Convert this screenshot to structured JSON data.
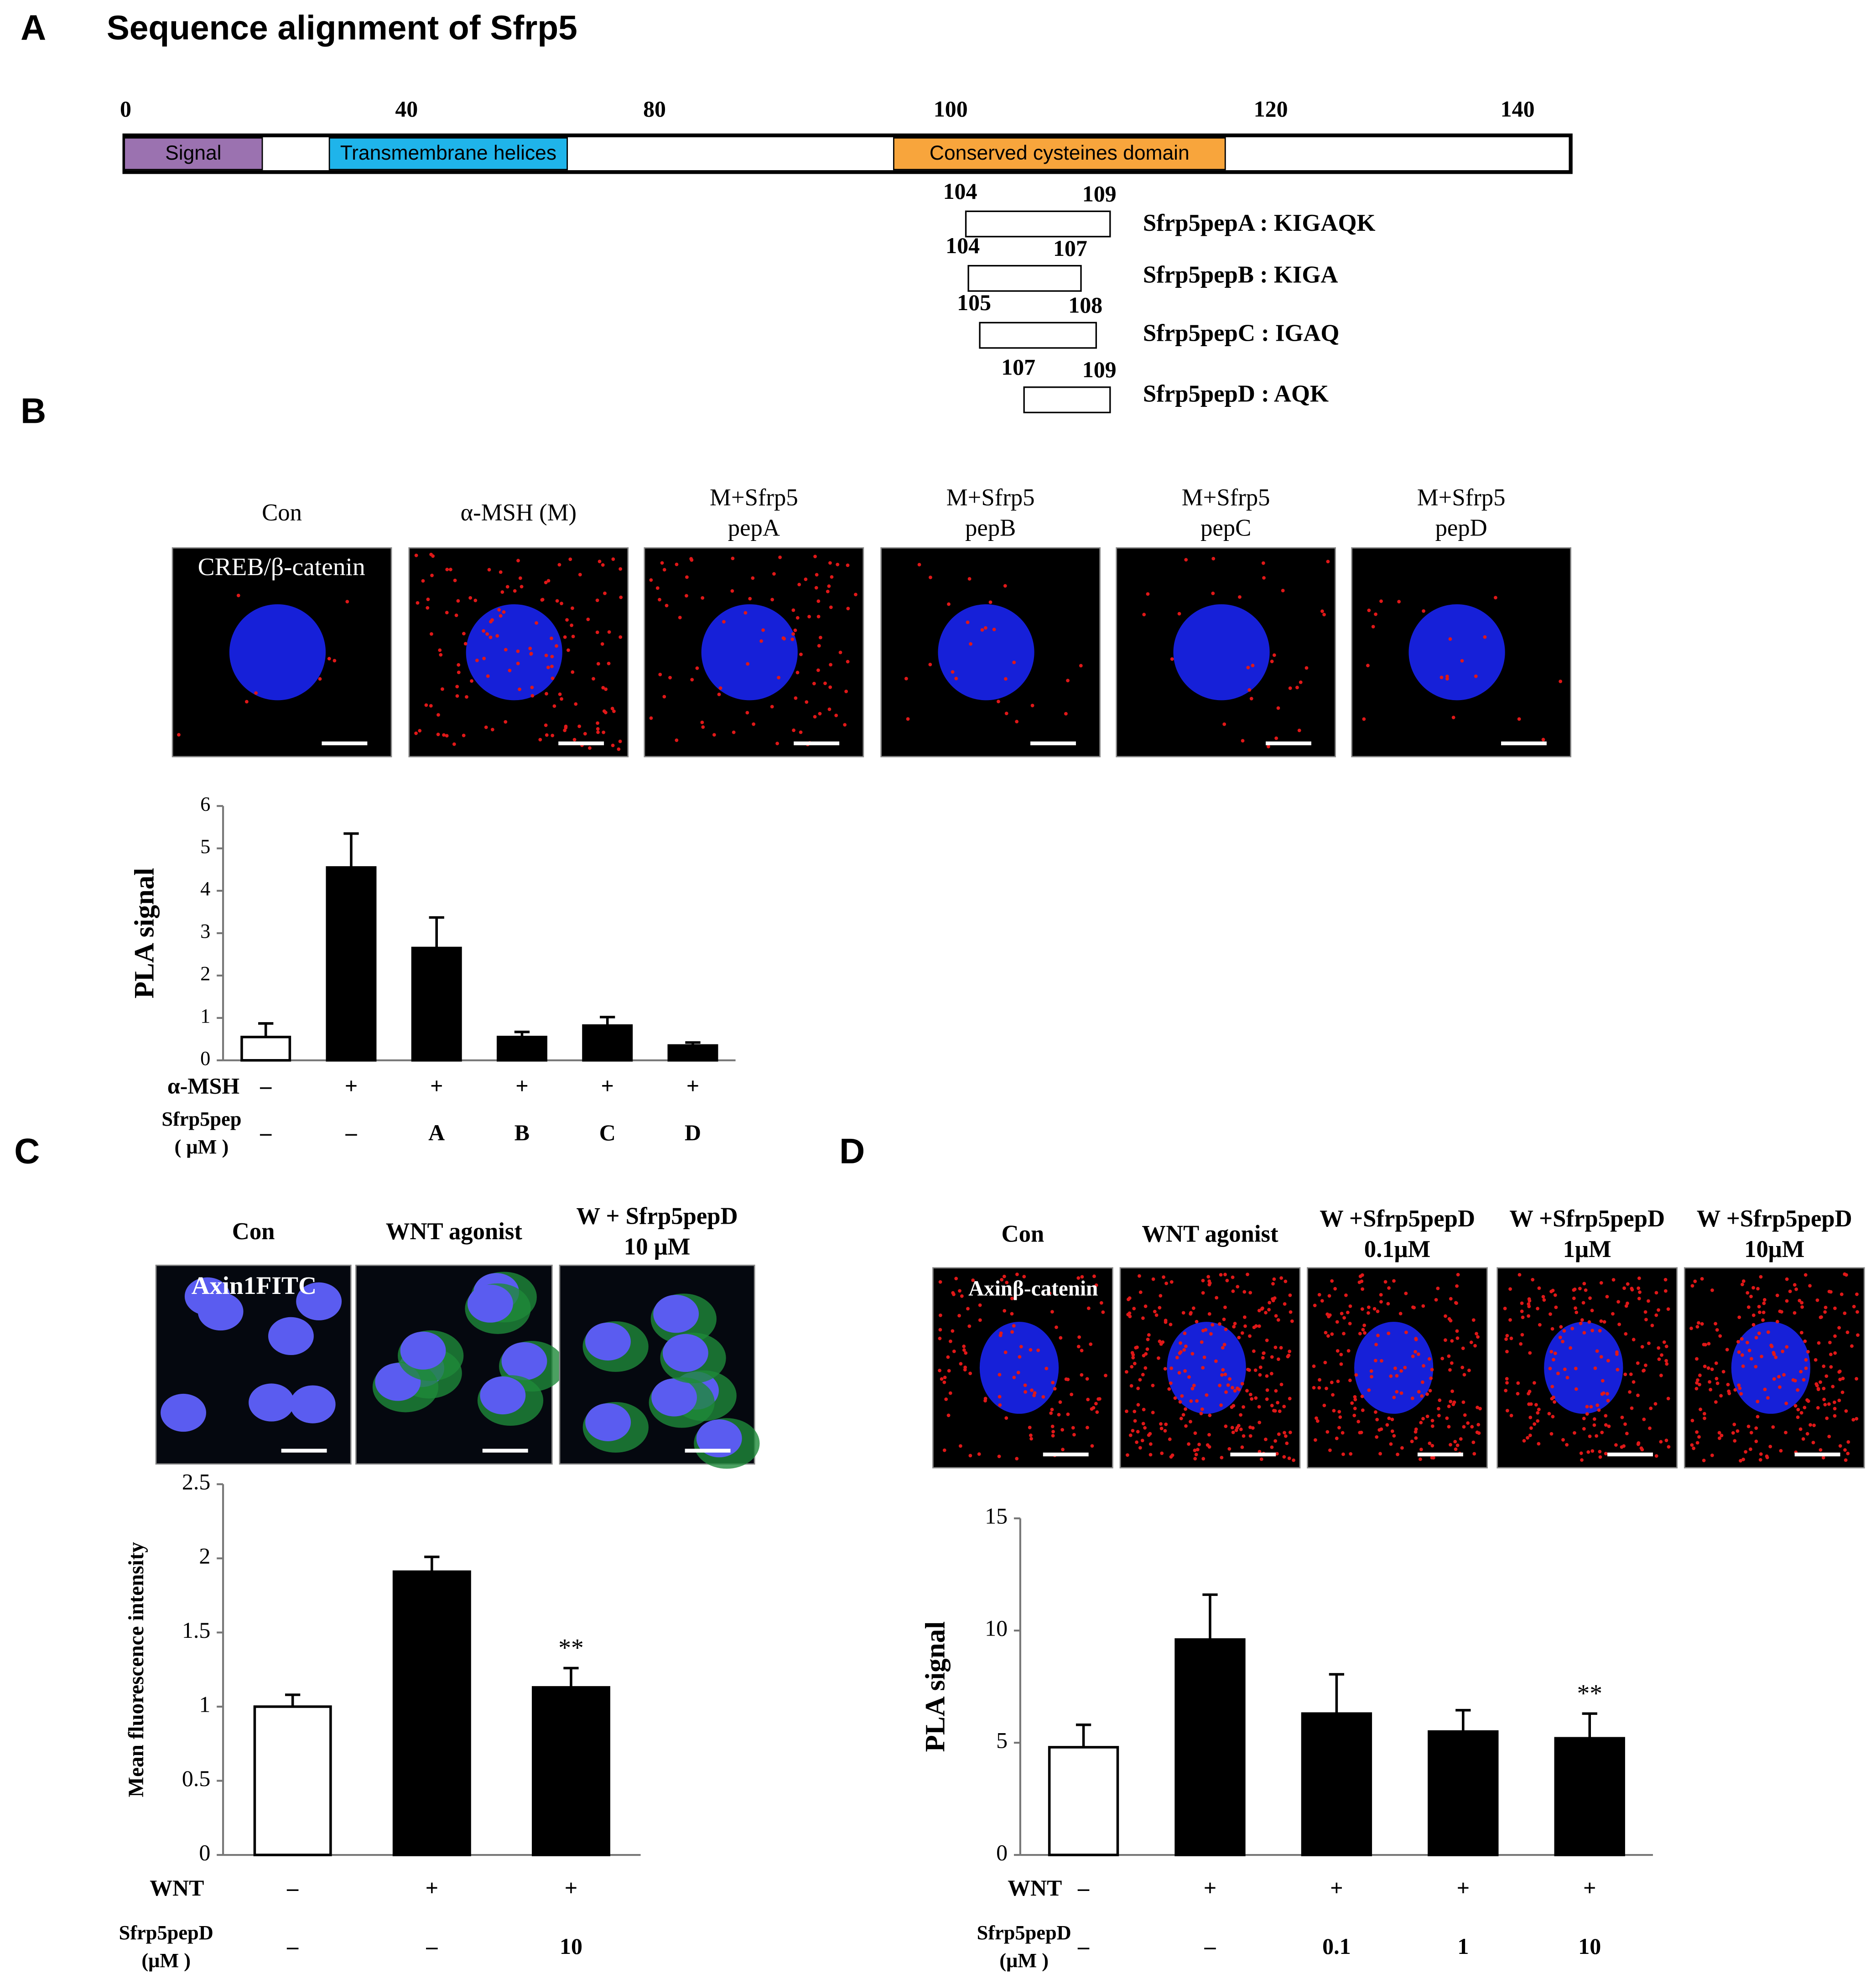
{
  "panel_labels": [
    "A",
    "B",
    "C",
    "D"
  ],
  "panel_a": {
    "title": "Sequence alignment of Sfrp5",
    "axis_ticks": [
      0,
      40,
      80,
      100,
      120,
      140
    ],
    "domains": [
      "Signal",
      "Transmembrane helices",
      "Conserved cysteines domain"
    ],
    "peptides": [
      {
        "start": 104,
        "end": 109,
        "label": "Sfrp5pepA : KIGAQK"
      },
      {
        "start": 104,
        "end": 107,
        "label": "Sfrp5pepB : KIGA"
      },
      {
        "start": 105,
        "end": 108,
        "label": "Sfrp5pepC : IGAQ"
      },
      {
        "start": 107,
        "end": 109,
        "label": "Sfrp5pepD : AQK"
      }
    ]
  },
  "panel_b": {
    "stain": "CREB/β-catenin",
    "images": [
      [
        "Con"
      ],
      [
        "α-MSH (M)"
      ],
      [
        "M+Sfrp5",
        "pepA"
      ],
      [
        "M+Sfrp5",
        "pepB"
      ],
      [
        "M+Sfrp5",
        "pepC"
      ],
      [
        "M+Sfrp5",
        "pepD"
      ]
    ]
  },
  "panel_c": {
    "stain": "Axin1FITC",
    "images": [
      [
        "Con"
      ],
      [
        "WNT agonist"
      ],
      [
        "W + Sfrp5pepD",
        "10 μM"
      ]
    ]
  },
  "panel_d": {
    "stain": "Axinβ-catenin",
    "images": [
      [
        "Con"
      ],
      [
        "WNT agonist"
      ],
      [
        "W +Sfrp5pepD",
        "0.1μM"
      ],
      [
        "W +Sfrp5pepD",
        "1μM"
      ],
      [
        "W +Sfrp5pepD",
        "10μM"
      ]
    ]
  },
  "chart_data": [
    {
      "type": "bar",
      "y_label": "PLA signal",
      "ylim": [
        0,
        6
      ],
      "yticks": [
        0,
        1,
        2,
        3,
        4,
        5,
        6
      ],
      "values": [
        0.55,
        4.55,
        2.65,
        0.55,
        0.82,
        0.35
      ],
      "errors": [
        0.32,
        0.8,
        0.72,
        0.12,
        0.2,
        0.07
      ],
      "colors": [
        "#ffffff",
        "#000000",
        "#000000",
        "#000000",
        "#000000",
        "#000000"
      ],
      "rows": [
        {
          "label": [
            "α-MSH"
          ],
          "entries": [
            "–",
            "+",
            "+",
            "+",
            "+",
            "+"
          ]
        },
        {
          "label": [
            "Sfrp5pep",
            "( μM )"
          ],
          "entries": [
            "–",
            "–",
            "A",
            "B",
            "C",
            "D"
          ]
        }
      ]
    },
    {
      "type": "bar",
      "y_label": "Mean fluorescence intensity",
      "ylim": [
        0,
        2.5
      ],
      "yticks": [
        0,
        0.5,
        1,
        1.5,
        2,
        2.5
      ],
      "values": [
        1,
        1.91,
        1.13
      ],
      "errors": [
        0.08,
        0.1,
        0.13
      ],
      "colors": [
        "#ffffff",
        "#000000",
        "#000000"
      ],
      "significance": [
        null,
        null,
        "**"
      ],
      "rows": [
        {
          "label": [
            "WNT"
          ],
          "entries": [
            "–",
            "+",
            "+"
          ]
        },
        {
          "label": [
            "Sfrp5pepD",
            "(μM )"
          ],
          "entries": [
            "–",
            "–",
            "10"
          ]
        }
      ]
    },
    {
      "type": "bar",
      "y_label": "PLA signal",
      "ylim": [
        0,
        15
      ],
      "yticks": [
        0,
        5,
        10,
        15
      ],
      "values": [
        4.8,
        9.6,
        6.3,
        5.5,
        5.2
      ],
      "errors": [
        1.0,
        2.0,
        1.75,
        0.95,
        1.1
      ],
      "colors": [
        "#ffffff",
        "#000000",
        "#000000",
        "#000000",
        "#000000"
      ],
      "significance": [
        null,
        null,
        null,
        null,
        "**"
      ],
      "rows": [
        {
          "label": [
            "WNT"
          ],
          "entries": [
            "–",
            "+",
            "+",
            "+",
            "+"
          ]
        },
        {
          "label": [
            "Sfrp5pepD",
            "(μM )"
          ],
          "entries": [
            "–",
            "–",
            "0.1",
            "1",
            "10"
          ]
        }
      ]
    }
  ]
}
